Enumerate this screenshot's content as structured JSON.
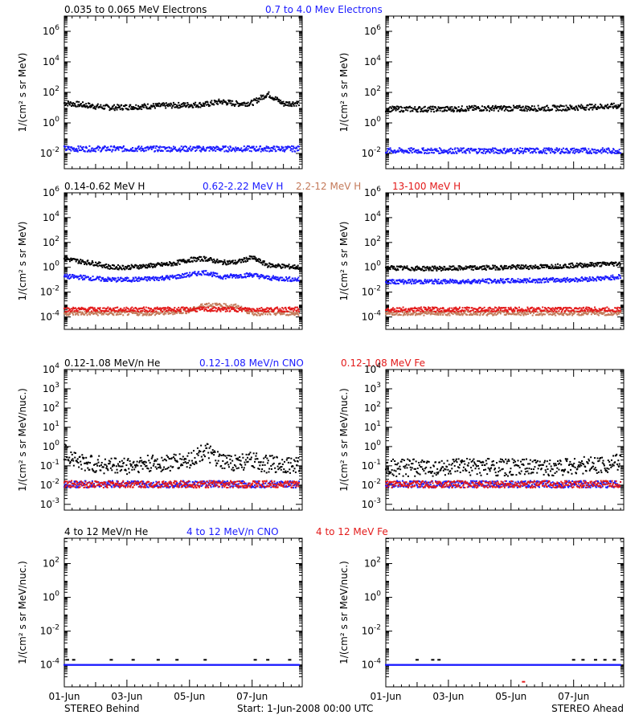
{
  "colors": {
    "black": "#000000",
    "blue": "#1a1aff",
    "brown": "#c47a5a",
    "red": "#e31a1a"
  },
  "footer": {
    "left": "STEREO Behind",
    "center": "Start:  1-Jun-2008 00:00 UTC",
    "right": "STEREO Ahead"
  },
  "chart_data": [
    {
      "type": "scatter",
      "scale": "log",
      "ylabel": "1/(cm² s sr MeV)",
      "ylim_exp": [
        -3,
        7
      ],
      "ytick_exps": [
        -2,
        0,
        2,
        4,
        6
      ],
      "legend": [
        {
          "text": "0.035 to 0.065 MeV Electrons",
          "color": "#000000"
        },
        {
          "text": "0.7 to 4.0 Mev Electrons",
          "color": "#1a1aff"
        }
      ],
      "xlim_days": [
        0,
        7.6
      ],
      "xticks": [
        "01-Jun",
        "03-Jun",
        "05-Jun",
        "07-Jun"
      ],
      "behind": [
        {
          "color": "#000000",
          "x": [
            0,
            0.5,
            1,
            1.5,
            2,
            2.5,
            3,
            3.5,
            4,
            4.5,
            5,
            5.5,
            6,
            6.5,
            7,
            7.5
          ],
          "y": [
            20,
            16,
            12,
            10,
            11,
            12,
            13,
            14,
            15,
            16,
            25,
            18,
            20,
            80,
            18,
            20
          ]
        },
        {
          "color": "#1a1aff",
          "x": [
            0,
            1,
            2,
            3,
            4,
            5,
            6,
            7,
            7.5
          ],
          "y": [
            0.02,
            0.02,
            0.02,
            0.02,
            0.02,
            0.02,
            0.02,
            0.02,
            0.02
          ]
        }
      ],
      "ahead": [
        {
          "color": "#000000",
          "x": [
            0,
            1,
            2,
            3,
            4,
            5,
            6,
            7,
            7.5
          ],
          "y": [
            8,
            8,
            8,
            9,
            9,
            9,
            10,
            12,
            13
          ]
        },
        {
          "color": "#1a1aff",
          "x": [
            0,
            1,
            2,
            3,
            4,
            5,
            6,
            7,
            7.5
          ],
          "y": [
            0.015,
            0.015,
            0.015,
            0.015,
            0.015,
            0.015,
            0.015,
            0.015,
            0.015
          ]
        }
      ]
    },
    {
      "type": "scatter",
      "scale": "log",
      "ylabel": "1/(cm² s sr MeV)",
      "ylim_exp": [
        -5,
        6
      ],
      "ytick_exps": [
        -4,
        -2,
        0,
        2,
        4,
        6
      ],
      "legend": [
        {
          "text": "0.14-0.62 MeV H",
          "color": "#000000"
        },
        {
          "text": "0.62-2.22 MeV H",
          "color": "#1a1aff"
        },
        {
          "text": "2.2-12 MeV H",
          "color": "#c47a5a"
        },
        {
          "text": "13-100 MeV H",
          "color": "#e31a1a"
        }
      ],
      "xlim_days": [
        0,
        7.6
      ],
      "xticks": [
        "01-Jun",
        "03-Jun",
        "05-Jun",
        "07-Jun"
      ],
      "behind": [
        {
          "color": "#000000",
          "x": [
            0,
            0.5,
            1,
            1.5,
            2,
            2.5,
            3,
            3.5,
            4,
            4.5,
            5,
            5.5,
            6,
            6.5,
            7,
            7.5
          ],
          "y": [
            5,
            3,
            2,
            1,
            1,
            1.2,
            1.5,
            2,
            4,
            5,
            2.5,
            2.5,
            6,
            1.5,
            1.2,
            1
          ]
        },
        {
          "color": "#1a1aff",
          "x": [
            0,
            0.5,
            1,
            1.5,
            2,
            2.5,
            3,
            3.5,
            4,
            4.5,
            5,
            5.5,
            6,
            6.5,
            7,
            7.5
          ],
          "y": [
            0.18,
            0.16,
            0.12,
            0.1,
            0.1,
            0.11,
            0.13,
            0.16,
            0.25,
            0.4,
            0.17,
            0.2,
            0.25,
            0.14,
            0.12,
            0.1
          ]
        },
        {
          "color": "#c47a5a",
          "x": [
            0,
            1,
            2,
            3,
            4,
            4.5,
            5,
            5.5,
            6,
            6.5,
            7,
            7.5
          ],
          "y": [
            0.0002,
            0.0002,
            0.0002,
            0.0002,
            0.0003,
            0.001,
            0.0008,
            0.0007,
            0.0002,
            0.0002,
            0.0002,
            0.0002
          ]
        },
        {
          "color": "#e31a1a",
          "x": [
            0,
            1,
            2,
            3,
            4,
            5,
            6,
            7,
            7.5
          ],
          "y": [
            0.0004,
            0.0004,
            0.0004,
            0.0004,
            0.0004,
            0.0004,
            0.0004,
            0.0004,
            0.0004
          ]
        }
      ],
      "ahead": [
        {
          "color": "#000000",
          "x": [
            0,
            1,
            2,
            3,
            4,
            5,
            6,
            7,
            7.5
          ],
          "y": [
            0.9,
            0.8,
            0.8,
            0.9,
            1,
            1.1,
            1.4,
            1.8,
            2
          ]
        },
        {
          "color": "#1a1aff",
          "x": [
            0,
            1,
            2,
            3,
            4,
            5,
            6,
            7,
            7.5
          ],
          "y": [
            0.07,
            0.07,
            0.07,
            0.075,
            0.08,
            0.09,
            0.1,
            0.13,
            0.18
          ]
        },
        {
          "color": "#c47a5a",
          "x": [
            0,
            2,
            4,
            6,
            7.5
          ],
          "y": [
            0.0002,
            0.0002,
            0.0002,
            0.0002,
            0.0002
          ]
        },
        {
          "color": "#e31a1a",
          "x": [
            0,
            1,
            2,
            3,
            4,
            5,
            6,
            7,
            7.5
          ],
          "y": [
            0.0004,
            0.0004,
            0.0004,
            0.0004,
            0.0004,
            0.0004,
            0.0004,
            0.0004,
            0.0004
          ]
        }
      ]
    },
    {
      "type": "scatter",
      "scale": "log",
      "ylabel": "1/(cm² s sr MeV/nuc.)",
      "ylim_exp": [
        -3.3,
        4
      ],
      "ytick_exps": [
        -3,
        -2,
        -1,
        0,
        1,
        2,
        3,
        4
      ],
      "legend": [
        {
          "text": "0.12-1.08 MeV/n He",
          "color": "#000000"
        },
        {
          "text": "0.12-1.08 MeV/n CNO",
          "color": "#1a1aff"
        },
        {
          "text": "0.12-1.08 MeV Fe",
          "color": "#e31a1a"
        }
      ],
      "xlim_days": [
        0,
        7.6
      ],
      "xticks": [
        "01-Jun",
        "03-Jun",
        "05-Jun",
        "07-Jun"
      ],
      "behind": [
        {
          "color": "#000000",
          "x": [
            0,
            0.2,
            0.5,
            1,
            1.5,
            2,
            2.5,
            3,
            3.5,
            4,
            4.5,
            5,
            5.5,
            6,
            6.5,
            7,
            7.5
          ],
          "y": [
            0.5,
            0.35,
            0.15,
            0.12,
            0.1,
            0.1,
            0.12,
            0.13,
            0.15,
            0.2,
            0.6,
            0.15,
            0.15,
            0.18,
            0.12,
            0.12,
            0.1
          ]
        },
        {
          "color": "#1a1aff",
          "x": [
            0,
            1,
            2,
            3,
            4,
            5,
            6,
            7,
            7.5
          ],
          "y": [
            0.011,
            0.011,
            0.011,
            0.011,
            0.011,
            0.011,
            0.011,
            0.011,
            0.011
          ]
        },
        {
          "color": "#e31a1a",
          "x": [
            0,
            1,
            2,
            3,
            4,
            5,
            6,
            7,
            7.5
          ],
          "y": [
            0.011,
            0.011,
            0.011,
            0.011,
            0.011,
            0.011,
            0.011,
            0.011,
            0.011
          ]
        }
      ],
      "ahead": [
        {
          "color": "#000000",
          "x": [
            0,
            1,
            2,
            3,
            4,
            5,
            6,
            7,
            7.5
          ],
          "y": [
            0.08,
            0.08,
            0.08,
            0.09,
            0.08,
            0.08,
            0.1,
            0.12,
            0.15
          ]
        },
        {
          "color": "#1a1aff",
          "x": [
            0,
            1,
            2,
            3,
            4,
            5,
            6,
            7,
            7.5
          ],
          "y": [
            0.011,
            0.011,
            0.011,
            0.011,
            0.011,
            0.011,
            0.011,
            0.011,
            0.011
          ]
        },
        {
          "color": "#e31a1a",
          "x": [
            0,
            1,
            2,
            3,
            4,
            5,
            6,
            7,
            7.5
          ],
          "y": [
            0.011,
            0.011,
            0.011,
            0.011,
            0.011,
            0.011,
            0.011,
            0.011,
            0.011
          ]
        }
      ]
    },
    {
      "type": "scatter",
      "scale": "log",
      "ylabel": "1/(cm² s sr MeV/nuc.)",
      "ylim_exp": [
        -5.3,
        3.5
      ],
      "ytick_exps": [
        -4,
        -2,
        0,
        2
      ],
      "legend": [
        {
          "text": "4 to 12 MeV/n He",
          "color": "#000000"
        },
        {
          "text": "4 to 12 MeV/n CNO",
          "color": "#1a1aff"
        },
        {
          "text": "4 to 12 MeV Fe",
          "color": "#e31a1a"
        }
      ],
      "xlim_days": [
        0,
        7.6
      ],
      "xticks": [
        "01-Jun",
        "03-Jun",
        "05-Jun",
        "07-Jun"
      ],
      "behind": [
        {
          "color": "#000000",
          "x": [
            0.1,
            0.3,
            1.5,
            2.2,
            3.0,
            3.6,
            4.5,
            6.1,
            6.5,
            7.2
          ],
          "y": [
            0.0002,
            0.0002,
            0.0002,
            0.0002,
            0.0002,
            0.0002,
            0.0002,
            0.0002,
            0.0002,
            0.0002
          ]
        },
        {
          "color": "#1a1aff",
          "x": [
            0,
            1,
            2,
            3,
            4,
            5,
            6,
            7,
            7.5
          ],
          "y": [
            0.0001,
            0.0001,
            0.0001,
            0.0001,
            0.0001,
            0.0001,
            0.0001,
            0.0001,
            0.0001
          ]
        }
      ],
      "ahead": [
        {
          "color": "#000000",
          "x": [
            1,
            1.5,
            1.7,
            6.0,
            6.3,
            6.7,
            7.0,
            7.3
          ],
          "y": [
            0.0002,
            0.0002,
            0.0002,
            0.0002,
            0.0002,
            0.0002,
            0.0002,
            0.0002
          ]
        },
        {
          "color": "#1a1aff",
          "x": [
            0,
            1,
            2,
            3,
            4,
            5,
            6,
            7,
            7.5
          ],
          "y": [
            0.0001,
            0.0001,
            0.0001,
            0.0001,
            0.0001,
            0.0001,
            0.0001,
            0.0001,
            0.0001
          ]
        },
        {
          "color": "#e31a1a",
          "x": [
            4.4
          ],
          "y": [
            1e-05
          ]
        }
      ]
    }
  ]
}
